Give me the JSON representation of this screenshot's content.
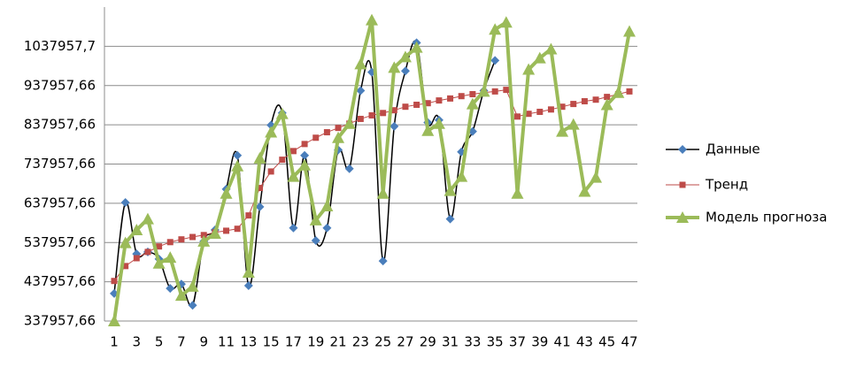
{
  "chart_data": {
    "type": "line",
    "categories": [
      "1",
      null,
      "3",
      null,
      "5",
      null,
      "7",
      null,
      "9",
      null,
      "11",
      null,
      "13",
      null,
      "15",
      null,
      "17",
      null,
      "19",
      null,
      "21",
      null,
      "23",
      null,
      "25",
      null,
      "27",
      null,
      "29",
      null,
      "31",
      null,
      "33",
      null,
      "35",
      null,
      "37",
      null,
      "39",
      null,
      "41",
      null,
      "43",
      null,
      "45",
      null,
      "47"
    ],
    "ylim": [
      337957.66,
      1137957.66
    ],
    "yticks": [
      {
        "value": 337957.66,
        "label": "337957,66"
      },
      {
        "value": 437957.66,
        "label": "437957,66"
      },
      {
        "value": 537957.66,
        "label": "537957,66"
      },
      {
        "value": 637957.66,
        "label": "637957,66"
      },
      {
        "value": 737957.66,
        "label": "737957,66"
      },
      {
        "value": 837957.66,
        "label": "837957,66"
      },
      {
        "value": 937957.66,
        "label": "937957,66"
      },
      {
        "value": 1037957.66,
        "label": "1037957,7"
      }
    ],
    "grid": true,
    "legend": "right",
    "series": [
      {
        "name": "Данные",
        "color": "#000000",
        "marker_color": "#4a7ebb",
        "marker": "diamond",
        "smooth": true,
        "line_width": 1.5,
        "values": [
          408000,
          640000,
          509000,
          514000,
          496000,
          421000,
          432000,
          378000,
          541000,
          570000,
          674000,
          760000,
          428000,
          629000,
          837000,
          868000,
          575000,
          760000,
          543000,
          575000,
          774000,
          726000,
          925000,
          972000,
          491000,
          834000,
          975000,
          1047000,
          844000,
          850000,
          598000,
          769000,
          821000,
          925000,
          1002000,
          null,
          null,
          null,
          null,
          null,
          null,
          null,
          null,
          null,
          null,
          null,
          null
        ]
      },
      {
        "name": "Тренд",
        "color": "#be4b48",
        "marker_color": "#be4b48",
        "marker": "square",
        "smooth": false,
        "line_width": 1,
        "values": [
          440000,
          478000,
          498000,
          514000,
          528000,
          539000,
          546000,
          552000,
          557000,
          564000,
          568000,
          573000,
          607000,
          677000,
          719000,
          749000,
          771000,
          789000,
          805000,
          819000,
          830000,
          841000,
          853000,
          862000,
          868000,
          875000,
          884000,
          889000,
          893000,
          900000,
          905000,
          911000,
          916000,
          920000,
          923000,
          927000,
          859000,
          866000,
          871000,
          877000,
          884000,
          891000,
          898000,
          902000,
          909000,
          916000,
          923000
        ]
      },
      {
        "name": "Модель прогноза",
        "color": "#9bbb59",
        "marker_color": "#9bbb59",
        "marker": "triangle",
        "smooth": false,
        "line_width": 4,
        "values": [
          338000,
          537000,
          570000,
          598000,
          485000,
          500000,
          403000,
          426000,
          541000,
          561000,
          663000,
          733000,
          462000,
          753000,
          819000,
          866000,
          706000,
          735000,
          595000,
          631000,
          805000,
          841000,
          993000,
          1105000,
          663000,
          984000,
          1011000,
          1035000,
          823000,
          841000,
          670000,
          706000,
          891000,
          923000,
          1081000,
          1099000,
          663000,
          979000,
          1008000,
          1031000,
          821000,
          839000,
          668000,
          704000,
          889000,
          920000,
          1076000
        ]
      }
    ]
  }
}
